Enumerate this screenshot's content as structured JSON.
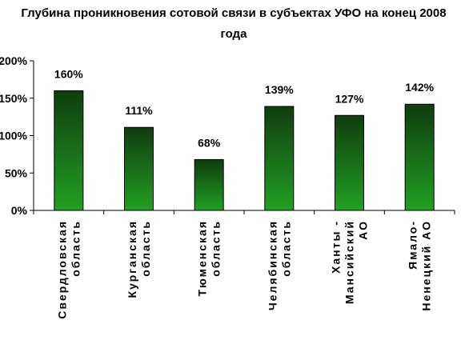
{
  "chart_data": {
    "type": "bar",
    "title_lines": [
      "Глубина проникновения сотовой связи в субъектах УФО на конец 2008",
      "года"
    ],
    "xlabel": "",
    "ylabel": "",
    "ylim": [
      0,
      200
    ],
    "yticks": [
      "0%",
      "50%",
      "100%",
      "150%",
      "200%"
    ],
    "grid": false,
    "legend": "none",
    "categories": [
      [
        "Свердловская",
        "область"
      ],
      [
        "Курганская",
        "область"
      ],
      [
        "Тюменская",
        "область"
      ],
      [
        "Челябинская",
        "область"
      ],
      [
        "Ханты -",
        "Мансийский",
        "АО"
      ],
      [
        "Ямало-",
        "Ненецкий АО"
      ]
    ],
    "values": [
      160,
      111,
      68,
      139,
      127,
      142
    ],
    "data_labels": [
      "160%",
      "111%",
      "68%",
      "139%",
      "127%",
      "142%"
    ],
    "colors": {
      "bar_top": "#0f3d0f",
      "bar_bottom": "#22a022",
      "bar_stroke": "#000000",
      "axis": "#000000"
    }
  }
}
